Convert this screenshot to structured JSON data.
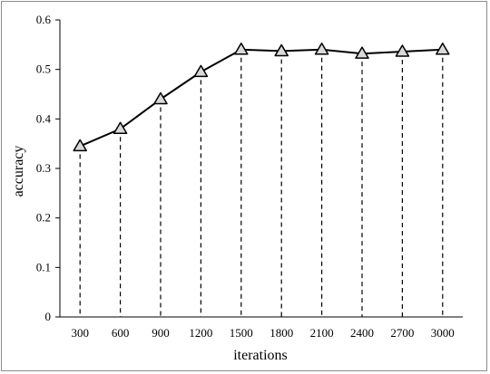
{
  "chart_data": {
    "type": "line",
    "xlabel": "iterations",
    "ylabel": "accuracy",
    "categories": [
      "300",
      "600",
      "900",
      "1200",
      "1500",
      "1800",
      "2100",
      "2400",
      "2700",
      "3000"
    ],
    "series": [
      {
        "values": [
          0.345,
          0.38,
          0.44,
          0.495,
          0.54,
          0.537,
          0.54,
          0.532,
          0.536,
          0.54
        ]
      }
    ],
    "y_ticks": [
      "0",
      "0.1",
      "0.2",
      "0.3",
      "0.4",
      "0.5",
      "0.6"
    ],
    "ylim": [
      0,
      0.6
    ],
    "marker": "triangle",
    "drop_lines": "dashed",
    "grid": false,
    "line_color": "#000000",
    "marker_fill": "#d9d9d9"
  }
}
